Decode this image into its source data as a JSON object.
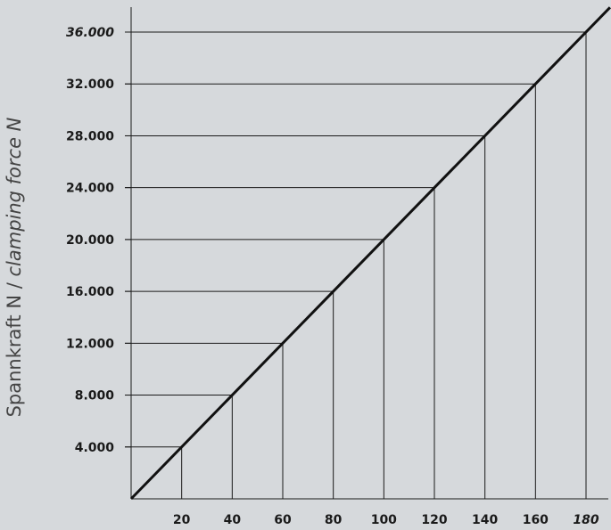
{
  "chart_data": {
    "type": "line",
    "ylabel_main": "Spannkraft N / ",
    "ylabel_italic": "clamping force N",
    "xlabel": "",
    "x": [
      0,
      20,
      40,
      60,
      80,
      100,
      120,
      140,
      160,
      180
    ],
    "y": [
      0,
      4000,
      8000,
      12000,
      16000,
      20000,
      24000,
      28000,
      32000,
      36000
    ],
    "xlim": [
      0,
      190
    ],
    "ylim": [
      0,
      38000
    ],
    "x_ticks": [
      20,
      40,
      60,
      80,
      100,
      120,
      140,
      160,
      180
    ],
    "x_tick_labels": [
      "20",
      "40",
      "60",
      "80",
      "100",
      "120",
      "140",
      "160",
      "180"
    ],
    "y_ticks": [
      4000,
      8000,
      12000,
      16000,
      20000,
      24000,
      28000,
      32000,
      36000
    ],
    "y_tick_labels": [
      "4.000",
      "8.000",
      "12.000",
      "16.000",
      "20.000",
      "24.000",
      "28.000",
      "32.000",
      "36.000"
    ],
    "emphasized_x_tick": "180",
    "emphasized_y_tick": "36.000",
    "drop_lines": true,
    "colors": {
      "background": "#d6d9dc",
      "line": "#111111",
      "grid": "#1a1a1a",
      "text": "#1a1a1a",
      "axis_title": "#444444"
    }
  }
}
